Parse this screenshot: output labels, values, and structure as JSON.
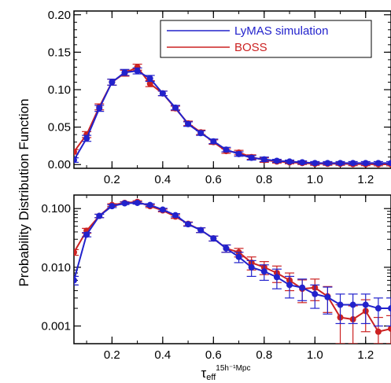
{
  "chart_data": [
    {
      "type": "line",
      "panel": "top",
      "scale": "linear",
      "xlim": [
        0.05,
        1.3
      ],
      "ylim": [
        -0.005,
        0.205
      ],
      "xticks": [
        0.2,
        0.4,
        0.6,
        0.8,
        1.0,
        1.2
      ],
      "xtick_labels": [
        "0.2",
        "0.4",
        "0.6",
        "0.8",
        "1.0",
        "1.2"
      ],
      "yticks": [
        0.0,
        0.05,
        0.1,
        0.15,
        0.2
      ],
      "ytick_labels": [
        "0.00",
        "0.05",
        "0.10",
        "0.15",
        "0.20"
      ],
      "legend": {
        "position": "top-right",
        "entries": [
          {
            "label": "LyMAS simulation",
            "color": "#2222cc"
          },
          {
            "label": "BOSS",
            "color": "#cc2222"
          }
        ]
      },
      "x": [
        0.05,
        0.1,
        0.15,
        0.2,
        0.25,
        0.3,
        0.35,
        0.4,
        0.45,
        0.5,
        0.55,
        0.6,
        0.65,
        0.7,
        0.75,
        0.8,
        0.85,
        0.9,
        0.95,
        1.0,
        1.05,
        1.1,
        1.15,
        1.2,
        1.25,
        1.3
      ],
      "series": [
        {
          "name": "BOSS",
          "color": "#cc2222",
          "values": [
            0.017,
            0.04,
            0.077,
            0.11,
            0.122,
            0.13,
            0.108,
            0.095,
            0.075,
            0.055,
            0.043,
            0.03,
            0.018,
            0.016,
            0.01,
            0.006,
            0.004,
            0.003,
            0.002,
            0.001,
            0.001,
            0.001,
            0.0005,
            0.0005,
            0.0003,
            0.0003
          ],
          "errors": [
            0.003,
            0.004,
            0.004,
            0.004,
            0.004,
            0.004,
            0.004,
            0.003,
            0.003,
            0.003,
            0.003,
            0.003,
            0.003,
            0.003,
            0.003,
            0.003,
            0.002,
            0.002,
            0.002,
            0.002,
            0.002,
            0.002,
            0.002,
            0.002,
            0.002,
            0.002
          ]
        },
        {
          "name": "LyMAS simulation",
          "color": "#2222cc",
          "values": [
            0.006,
            0.035,
            0.075,
            0.11,
            0.123,
            0.125,
            0.115,
            0.095,
            0.076,
            0.054,
            0.042,
            0.031,
            0.02,
            0.014,
            0.009,
            0.007,
            0.005,
            0.004,
            0.003,
            0.002,
            0.002,
            0.002,
            0.002,
            0.002,
            0.002,
            0.002
          ],
          "errors": [
            0.003,
            0.004,
            0.004,
            0.004,
            0.004,
            0.004,
            0.004,
            0.003,
            0.003,
            0.003,
            0.003,
            0.003,
            0.003,
            0.003,
            0.003,
            0.003,
            0.002,
            0.002,
            0.002,
            0.002,
            0.002,
            0.002,
            0.002,
            0.002,
            0.002,
            0.002
          ]
        }
      ]
    },
    {
      "type": "line",
      "panel": "bottom",
      "scale": "log",
      "xlim": [
        0.05,
        1.3
      ],
      "ylim": [
        0.0005,
        0.17
      ],
      "xticks": [
        0.2,
        0.4,
        0.6,
        0.8,
        1.0,
        1.2
      ],
      "xtick_labels": [
        "0.2",
        "0.4",
        "0.6",
        "0.8",
        "1.0",
        "1.2"
      ],
      "yticks": [
        0.001,
        0.01,
        0.1
      ],
      "ytick_labels": [
        "0.001",
        "0.010",
        "0.100"
      ],
      "xlabel": "τ",
      "xlabel_sub": "eff",
      "xlabel_sup": "15h⁻¹Mpc",
      "x": [
        0.05,
        0.1,
        0.15,
        0.2,
        0.25,
        0.3,
        0.35,
        0.4,
        0.45,
        0.5,
        0.55,
        0.6,
        0.65,
        0.7,
        0.75,
        0.8,
        0.85,
        0.9,
        0.95,
        1.0,
        1.05,
        1.1,
        1.15,
        1.2,
        1.25,
        1.3
      ],
      "series": [
        {
          "name": "BOSS",
          "color": "#cc2222",
          "values": [
            0.018,
            0.042,
            0.075,
            0.115,
            0.125,
            0.13,
            0.11,
            0.093,
            0.073,
            0.055,
            0.043,
            0.031,
            0.021,
            0.018,
            0.012,
            0.01,
            0.008,
            0.006,
            0.0043,
            0.0045,
            0.0032,
            0.0014,
            0.0013,
            0.0018,
            0.0008,
            0.0009
          ],
          "errors_low": [
            0.002,
            0.004,
            0.005,
            0.006,
            0.006,
            0.006,
            0.006,
            0.005,
            0.005,
            0.004,
            0.004,
            0.003,
            0.003,
            0.003,
            0.003,
            0.0025,
            0.0025,
            0.002,
            0.0018,
            0.0018,
            0.0015,
            0.0009,
            0.0009,
            0.001,
            0.0006,
            0.0006
          ],
          "errors_high": [
            0.002,
            0.004,
            0.005,
            0.006,
            0.006,
            0.006,
            0.006,
            0.005,
            0.005,
            0.004,
            0.004,
            0.003,
            0.003,
            0.003,
            0.003,
            0.0025,
            0.0025,
            0.002,
            0.0018,
            0.0018,
            0.0015,
            0.0009,
            0.0009,
            0.001,
            0.0006,
            0.0006
          ]
        },
        {
          "name": "LyMAS simulation",
          "color": "#2222cc",
          "values": [
            0.006,
            0.036,
            0.075,
            0.11,
            0.123,
            0.125,
            0.115,
            0.096,
            0.077,
            0.054,
            0.043,
            0.031,
            0.021,
            0.015,
            0.01,
            0.0085,
            0.0068,
            0.005,
            0.0045,
            0.0035,
            0.0031,
            0.0023,
            0.0023,
            0.0023,
            0.002,
            0.002
          ],
          "errors_low": [
            0.001,
            0.003,
            0.005,
            0.006,
            0.006,
            0.006,
            0.006,
            0.005,
            0.005,
            0.004,
            0.004,
            0.003,
            0.003,
            0.003,
            0.003,
            0.0025,
            0.0025,
            0.002,
            0.0018,
            0.0015,
            0.0015,
            0.0012,
            0.0012,
            0.0012,
            0.001,
            0.001
          ],
          "errors_high": [
            0.001,
            0.003,
            0.005,
            0.006,
            0.006,
            0.006,
            0.006,
            0.005,
            0.005,
            0.004,
            0.004,
            0.003,
            0.003,
            0.003,
            0.003,
            0.0025,
            0.0025,
            0.002,
            0.0018,
            0.0015,
            0.0015,
            0.0012,
            0.0012,
            0.0012,
            0.001,
            0.001
          ]
        }
      ]
    }
  ],
  "ylabel": "Probability Distribution Function"
}
